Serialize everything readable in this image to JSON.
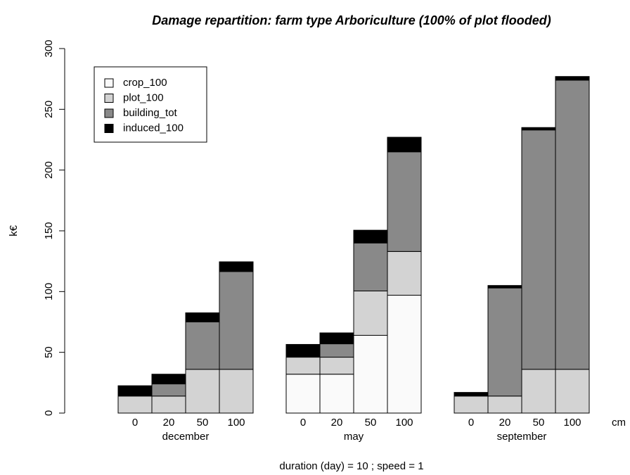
{
  "chart_data": {
    "type": "stacked_bar",
    "title": "Damage repartition: farm type Arboriculture (100% of plot flooded)",
    "y_label": "k€",
    "x_label": "duration (day) = 10 ; speed = 1",
    "x_unit": "cm",
    "groups": [
      "december",
      "may",
      "september"
    ],
    "categories": [
      "0",
      "20",
      "50",
      "100",
      "0",
      "20",
      "50",
      "100",
      "0",
      "20",
      "50",
      "100"
    ],
    "series": [
      {
        "name": "crop_100",
        "color": "#fafafa",
        "values": [
          0,
          0,
          0,
          0,
          32,
          32,
          64,
          97,
          0,
          0,
          0,
          0
        ]
      },
      {
        "name": "plot_100",
        "color": "#d3d3d3",
        "values": [
          14,
          14,
          36,
          36,
          14,
          14,
          36.5,
          36,
          14,
          14,
          36,
          36
        ]
      },
      {
        "name": "building_tot",
        "color": "#898989",
        "values": [
          0,
          10,
          39,
          80.5,
          0,
          11,
          39.5,
          82,
          0,
          89,
          197,
          238
        ]
      },
      {
        "name": "induced_100",
        "color": "#000000",
        "values": [
          8.5,
          8,
          7.5,
          8,
          10.5,
          9,
          10.5,
          12,
          3,
          2,
          2,
          3
        ]
      }
    ],
    "ylim": [
      0,
      300
    ],
    "yticks": [
      0,
      50,
      100,
      150,
      200,
      250,
      300
    ],
    "legend": "top-left"
  }
}
